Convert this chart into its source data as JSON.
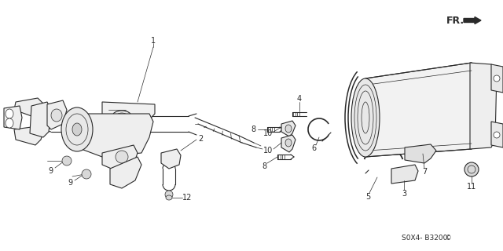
{
  "bg_color": "#ffffff",
  "line_color": "#2a2a2a",
  "fig_w": 6.4,
  "fig_h": 3.2,
  "dpi": 100,
  "part_code": "S0X4- B3200",
  "fr_label": "FR."
}
